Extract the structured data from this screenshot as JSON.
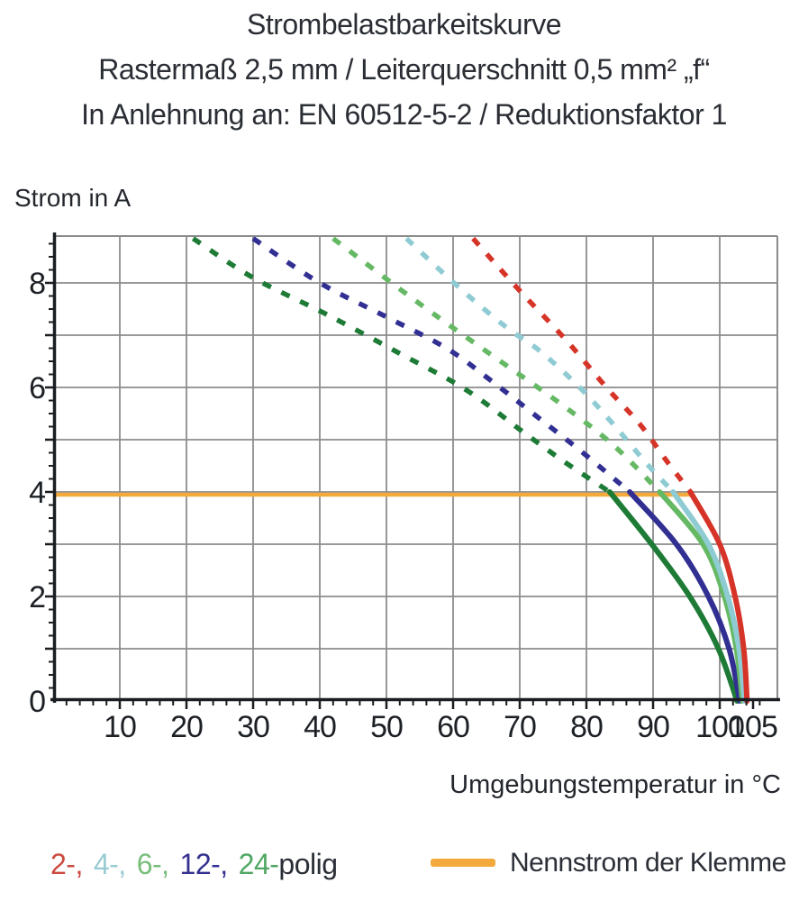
{
  "title": {
    "line1": "Strombelastbarkeitskurve",
    "line2": "Rastermaß 2,5 mm / Leiterquerschnitt 0,5 mm² „f“",
    "line3": "In Anlehnung an: EN 60512-5-2 / Reduktionsfaktor 1"
  },
  "chart_data": {
    "type": "line",
    "title": "Strombelastbarkeitskurve",
    "xlabel": "Umgebungstemperatur in °C",
    "ylabel": "Strom in A",
    "xlim": [
      0,
      108.6
    ],
    "ylim": [
      0,
      8.9
    ],
    "x_ticks": [
      10,
      20,
      30,
      40,
      50,
      60,
      70,
      80,
      90,
      100,
      105
    ],
    "y_ticks": [
      0,
      2,
      4,
      6,
      8
    ],
    "x_minor_step": 2,
    "y_minor_step": 0.25,
    "grid": {
      "x_step": 10,
      "y_step": 1,
      "color": "#8c8c8c",
      "on": true
    },
    "axis_color": "#1a1d21",
    "tick_label_color": "#1d2126",
    "nominal_current": {
      "label": "Nennstrom der Klemme",
      "value_a": 4,
      "x_start": 0,
      "x_end": 95.7,
      "color": "#f3a93c"
    },
    "legend_position": "bottom",
    "series": [
      {
        "name": "2-polig",
        "poles": 2,
        "color": "#d63428",
        "dashed_points": [
          [
            63,
            8.85
          ],
          [
            70,
            7.85
          ],
          [
            77,
            6.9
          ],
          [
            83,
            6.0
          ],
          [
            88,
            5.3
          ],
          [
            92,
            4.6
          ],
          [
            95.6,
            4.0
          ]
        ],
        "solid_points": [
          [
            95.6,
            4.0
          ],
          [
            100,
            3.0
          ],
          [
            102.3,
            2.0
          ],
          [
            103.6,
            1.0
          ],
          [
            104.1,
            0
          ]
        ]
      },
      {
        "name": "4-polig",
        "poles": 4,
        "color": "#8fcbd3",
        "dashed_points": [
          [
            53,
            8.85
          ],
          [
            61,
            7.9
          ],
          [
            68,
            7.15
          ],
          [
            73,
            6.7
          ],
          [
            79,
            6.0
          ],
          [
            84,
            5.3
          ],
          [
            89,
            4.55
          ],
          [
            93,
            4.0
          ]
        ],
        "solid_points": [
          [
            93,
            4.0
          ],
          [
            98.3,
            3.0
          ],
          [
            101.2,
            2.0
          ],
          [
            102.9,
            1.0
          ],
          [
            103.7,
            0
          ]
        ]
      },
      {
        "name": "6-polig",
        "poles": 6,
        "color": "#66b964",
        "dashed_points": [
          [
            42,
            8.85
          ],
          [
            55,
            7.6
          ],
          [
            66,
            6.6
          ],
          [
            76,
            5.7
          ],
          [
            84,
            4.9
          ],
          [
            91,
            4.0
          ]
        ],
        "solid_points": [
          [
            91,
            4.0
          ],
          [
            97.5,
            3.0
          ],
          [
            100.7,
            2.0
          ],
          [
            102.5,
            1.0
          ],
          [
            103.4,
            0
          ]
        ]
      },
      {
        "name": "12-polig",
        "poles": 12,
        "color": "#322f93",
        "dashed_points": [
          [
            30,
            8.85
          ],
          [
            40,
            8.0
          ],
          [
            50,
            7.35
          ],
          [
            59,
            6.75
          ],
          [
            65.5,
            6.15
          ],
          [
            72,
            5.5
          ],
          [
            79,
            4.8
          ],
          [
            86.5,
            4.0
          ]
        ],
        "solid_points": [
          [
            86.5,
            4.0
          ],
          [
            93.5,
            3.0
          ],
          [
            98.3,
            2.0
          ],
          [
            101.4,
            1.0
          ],
          [
            103,
            0
          ]
        ]
      },
      {
        "name": "24-polig",
        "poles": 24,
        "color": "#1e7b36",
        "dashed_points": [
          [
            21,
            8.85
          ],
          [
            30,
            8.1
          ],
          [
            41,
            7.4
          ],
          [
            52,
            6.65
          ],
          [
            62,
            5.95
          ],
          [
            71,
            5.1
          ],
          [
            77,
            4.55
          ],
          [
            83.5,
            4.0
          ]
        ],
        "solid_points": [
          [
            83.5,
            4.0
          ],
          [
            89.8,
            3.0
          ],
          [
            95.5,
            2.0
          ],
          [
            99.8,
            1.0
          ],
          [
            102.6,
            0
          ]
        ]
      }
    ]
  },
  "legend_poles": {
    "items": [
      {
        "label": "2-,",
        "color": "#cc4a3f"
      },
      {
        "label": "4-,",
        "color": "#99cbd3"
      },
      {
        "label": "6-,",
        "color": "#79be7b"
      },
      {
        "label": "12-,",
        "color": "#34308f"
      },
      {
        "label": "24-",
        "color": "#4fa763"
      }
    ],
    "suffix": "polig",
    "suffix_color": "#2b2f37"
  },
  "legend_nominal": {
    "label": "Nennstrom der Klemme",
    "swatch_color": "#f3a93c"
  }
}
